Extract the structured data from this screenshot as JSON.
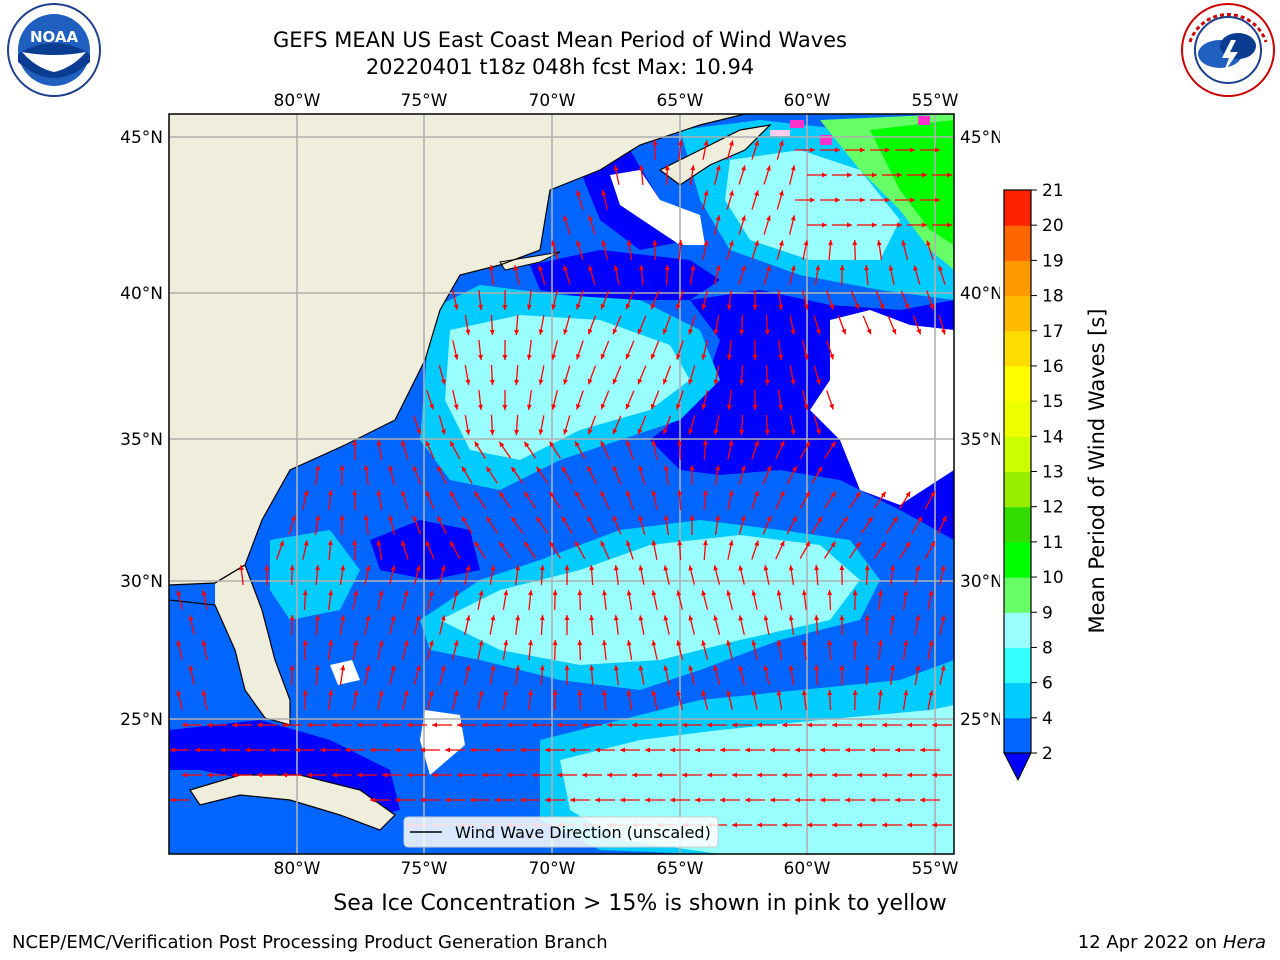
{
  "header": {
    "title_line1": "GEFS MEAN US East Coast Mean Period of Wind Waves",
    "title_line2": "20220401 t18z 048h fcst   Max: 10.94"
  },
  "logos": {
    "left": {
      "name": "noaa-logo",
      "text": "NOAA",
      "ring_text": "NATIONAL OCEANIC AND ATMOSPHERIC ADMINISTRATION · U.S. DEPARTMENT OF COMMERCE"
    },
    "right": {
      "name": "nws-logo",
      "ring_text": "NATIONAL WEATHER SERVICE"
    }
  },
  "map": {
    "lon_labels": [
      "80°W",
      "75°W",
      "70°W",
      "65°W",
      "60°W",
      "55°W"
    ],
    "lat_labels": [
      "45°N",
      "40°N",
      "35°N",
      "30°N",
      "25°N"
    ],
    "legend_label": "Wind Wave Direction (unscaled)",
    "colors": {
      "land": "#efeddc",
      "coast": "#000000",
      "grid": "#b0b0b0",
      "arrow": "#ff0000",
      "undefined": "#ffffff"
    }
  },
  "colorbar": {
    "label": "Mean Period of Wind Waves [s]",
    "ticks": [
      "2",
      "4",
      "6",
      "8",
      "9",
      "10",
      "11",
      "12",
      "13",
      "14",
      "15",
      "16",
      "17",
      "18",
      "19",
      "20",
      "21"
    ],
    "extend_color": "#0000ff",
    "colors": [
      "#0066ff",
      "#00ccff",
      "#33ffff",
      "#99ffff",
      "#66ff66",
      "#00ff00",
      "#33dd00",
      "#99ee00",
      "#ccff00",
      "#eeff00",
      "#ffff00",
      "#ffdd00",
      "#ffbb00",
      "#ff9900",
      "#ff6600",
      "#ff2200",
      "#ff0000"
    ]
  },
  "annotation": {
    "sea_ice_note": "Sea Ice Concentration > 15% is shown in pink to yellow"
  },
  "footer": {
    "left": "NCEP/EMC/Verification Post Processing Product Generation Branch",
    "right_date": "12 Apr 2022 on ",
    "right_host": "Hera"
  }
}
